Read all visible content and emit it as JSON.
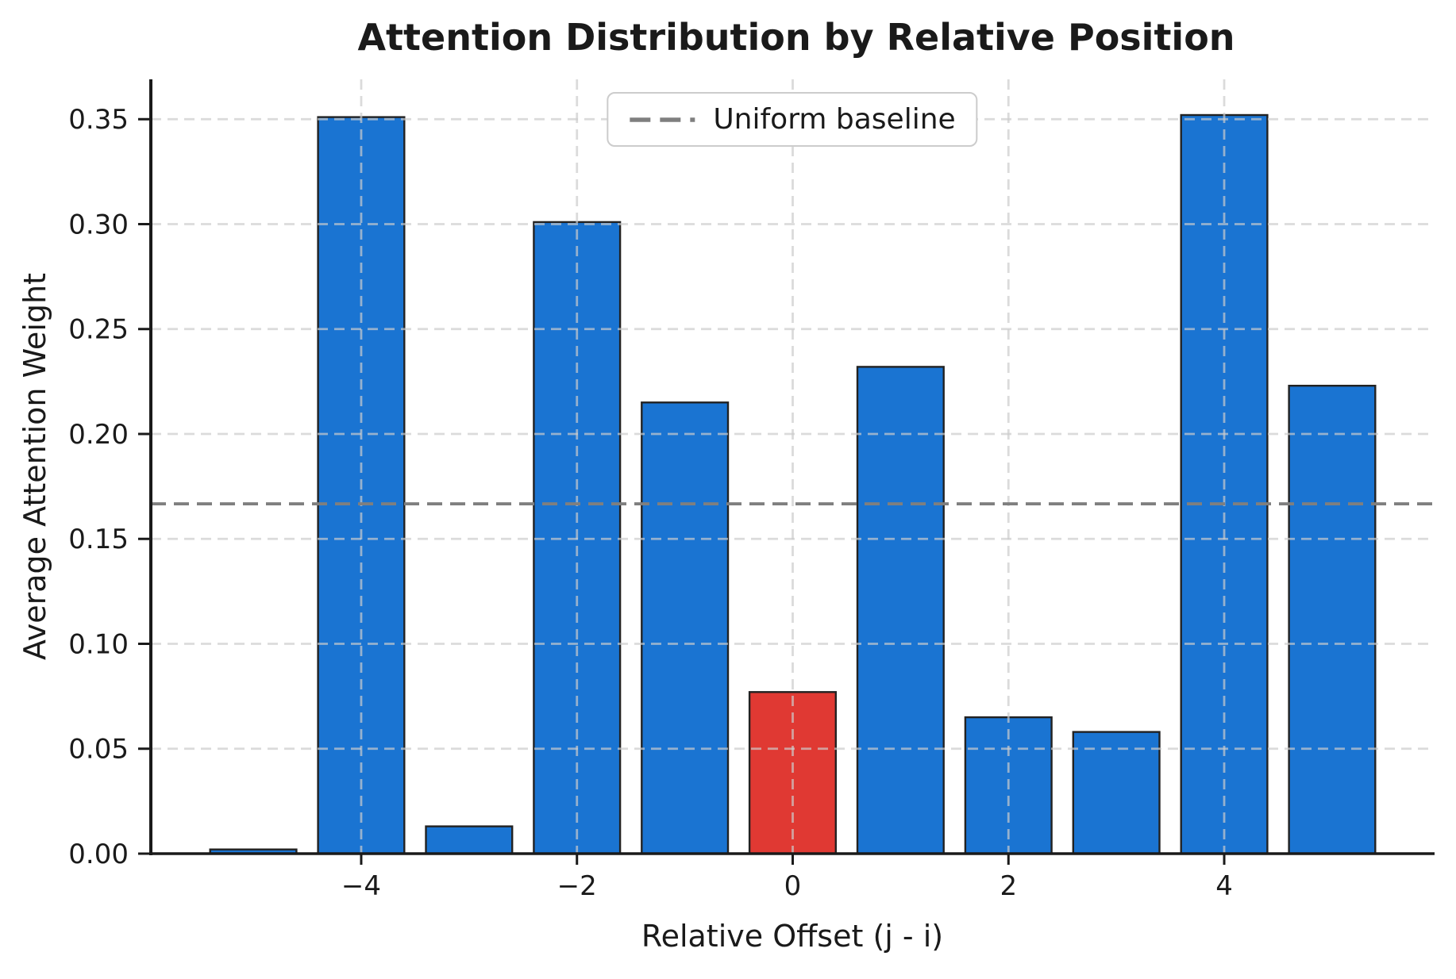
{
  "chart_data": {
    "type": "bar",
    "title": "Attention Distribution by Relative Position",
    "xlabel": "Relative Offset (j - i)",
    "ylabel": "Average Attention Weight",
    "x": [
      -5,
      -4,
      -3,
      -2,
      -1,
      0,
      1,
      2,
      3,
      4,
      5
    ],
    "values": [
      0.002,
      0.351,
      0.013,
      0.301,
      0.215,
      0.077,
      0.232,
      0.065,
      0.058,
      0.352,
      0.223
    ],
    "bar_width": 0.8,
    "highlight_x": 0,
    "baseline": {
      "value": 0.1667
    },
    "legend": {
      "label": "Uniform baseline",
      "position": "upper center"
    },
    "xlim": [
      -5.95,
      5.95
    ],
    "ylim": [
      0,
      0.369
    ],
    "xticks": {
      "values": [
        -4,
        -2,
        0,
        2,
        4
      ],
      "labels": [
        "−4",
        "−2",
        "0",
        "2",
        "4"
      ]
    },
    "yticks": {
      "values": [
        0,
        0.05,
        0.1,
        0.15,
        0.2,
        0.25,
        0.3,
        0.35
      ],
      "labels": [
        "0.00",
        "0.05",
        "0.10",
        "0.15",
        "0.20",
        "0.25",
        "0.30",
        "0.35"
      ]
    },
    "grid": {
      "on": true,
      "style": "dashed"
    },
    "colors": {
      "bar": "#1a74d2",
      "highlight": "#e03933",
      "bar_edge": "#222222",
      "baseline": "#7f7f7f",
      "grid": "#cccccc",
      "spine": "#1a1a1a",
      "text": "#1a1a1a",
      "legend_border": "#cccccc"
    }
  }
}
